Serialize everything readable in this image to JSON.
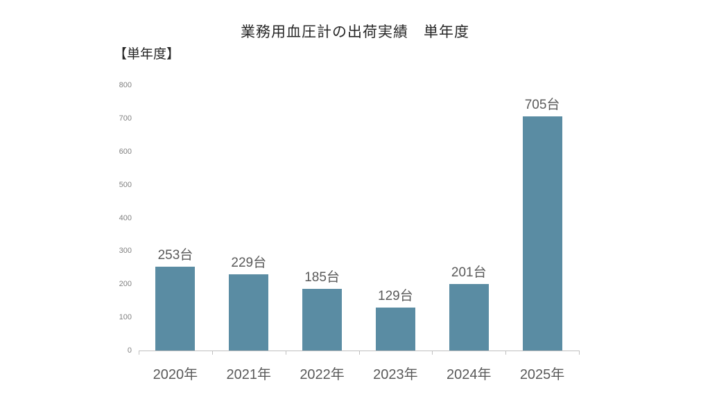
{
  "page": {
    "title": "業務用血圧計の出荷実績　単年度",
    "unit_label": "【単年度】"
  },
  "chart_data": {
    "type": "bar",
    "title": "業務用血圧計の出荷実績　単年度",
    "categories": [
      "2020年",
      "2021年",
      "2022年",
      "2023年",
      "2024年",
      "2025年"
    ],
    "values": [
      253,
      229,
      185,
      129,
      201,
      705
    ],
    "data_labels": [
      "253台",
      "229台",
      "185台",
      "129台",
      "201台",
      "705台"
    ],
    "value_suffix": "台",
    "xlabel": "",
    "ylabel": "",
    "ylim": [
      0,
      800
    ],
    "yticks": [
      0,
      100,
      200,
      300,
      400,
      500,
      600,
      700,
      800
    ],
    "grid": false,
    "legend_position": "none",
    "colors": {
      "bar": "#5a8ca3",
      "title_text": "#262626",
      "data_label_text": "#595959",
      "x_label_text": "#595959",
      "y_label_text": "#7f7f7f",
      "axis_line": "#bfbfbf",
      "background": "#ffffff"
    }
  }
}
